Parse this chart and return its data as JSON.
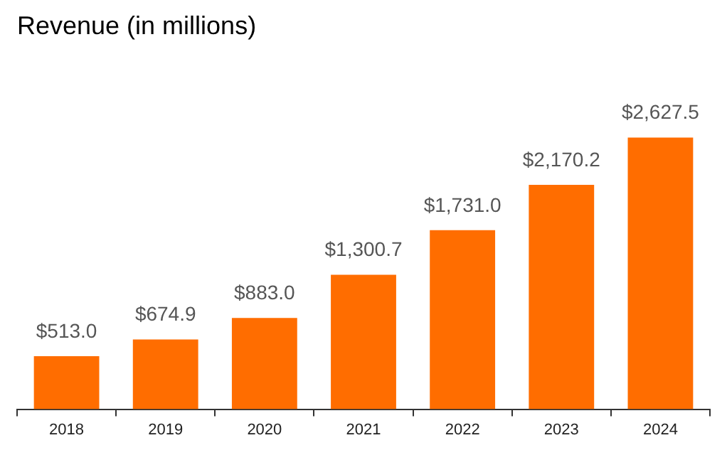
{
  "chart_data": {
    "type": "bar",
    "title": "Revenue (in millions)",
    "categories": [
      "2018",
      "2019",
      "2020",
      "2021",
      "2022",
      "2023",
      "2024"
    ],
    "values": [
      513.0,
      674.9,
      883.0,
      1300.7,
      1731.0,
      2170.2,
      2627.5
    ],
    "value_labels": [
      "$513.0",
      "$674.9",
      "$883.0",
      "$1,300.7",
      "$1,731.0",
      "$2,170.2",
      "$2,627.5"
    ],
    "color": "#ff6d00",
    "grid": false,
    "legend": false
  }
}
